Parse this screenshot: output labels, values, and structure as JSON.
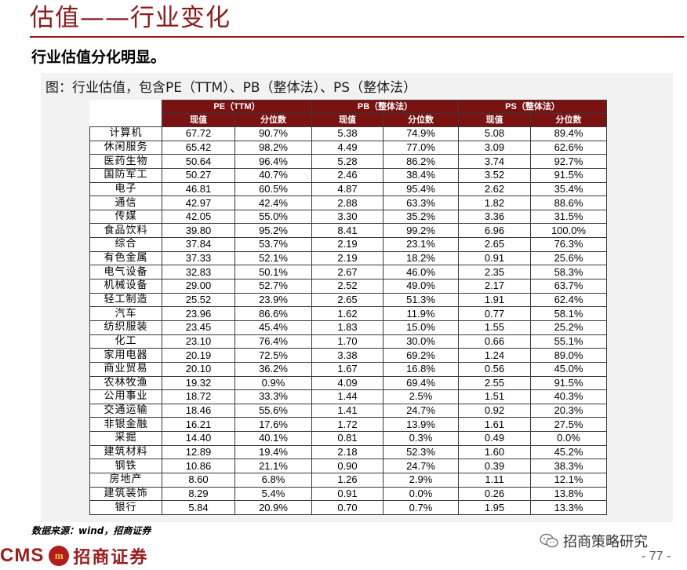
{
  "header": {
    "title": "估值——行业变化",
    "subtitle": "行业估值分化明显。"
  },
  "figure": {
    "caption": "图：行业估值，包含PE（TTM）、PB（整体法）、PS（整体法）"
  },
  "table": {
    "groups": [
      "PE（TTM）",
      "PB（整体法）",
      "PS（整体法）"
    ],
    "subheaders": [
      "现值",
      "分位数",
      "现值",
      "分位数",
      "现值",
      "分位数"
    ],
    "rows": [
      [
        "计算机",
        "67.72",
        "90.7%",
        "5.38",
        "74.9%",
        "5.08",
        "89.4%"
      ],
      [
        "休闲服务",
        "65.42",
        "98.2%",
        "4.49",
        "77.0%",
        "3.09",
        "62.6%"
      ],
      [
        "医药生物",
        "50.64",
        "96.4%",
        "5.28",
        "86.2%",
        "3.74",
        "92.7%"
      ],
      [
        "国防军工",
        "50.27",
        "40.7%",
        "2.46",
        "38.4%",
        "3.52",
        "91.5%"
      ],
      [
        "电子",
        "46.81",
        "60.5%",
        "4.87",
        "95.4%",
        "2.62",
        "35.4%"
      ],
      [
        "通信",
        "42.97",
        "42.4%",
        "2.88",
        "63.3%",
        "1.82",
        "88.6%"
      ],
      [
        "传媒",
        "42.05",
        "55.0%",
        "3.30",
        "35.2%",
        "3.36",
        "31.5%"
      ],
      [
        "食品饮料",
        "39.80",
        "95.2%",
        "8.41",
        "99.2%",
        "6.96",
        "100.0%"
      ],
      [
        "综合",
        "37.84",
        "53.7%",
        "2.19",
        "23.1%",
        "2.65",
        "76.3%"
      ],
      [
        "有色金属",
        "37.33",
        "52.1%",
        "2.19",
        "18.2%",
        "0.91",
        "25.6%"
      ],
      [
        "电气设备",
        "32.83",
        "50.1%",
        "2.67",
        "46.0%",
        "2.35",
        "58.3%"
      ],
      [
        "机械设备",
        "29.00",
        "52.7%",
        "2.52",
        "49.0%",
        "2.17",
        "63.7%"
      ],
      [
        "轻工制造",
        "25.52",
        "23.9%",
        "2.65",
        "51.3%",
        "1.91",
        "62.4%"
      ],
      [
        "汽车",
        "23.96",
        "86.6%",
        "1.62",
        "11.9%",
        "0.77",
        "58.1%"
      ],
      [
        "纺织服装",
        "23.45",
        "45.4%",
        "1.83",
        "15.0%",
        "1.55",
        "25.2%"
      ],
      [
        "化工",
        "23.10",
        "76.4%",
        "1.70",
        "30.0%",
        "0.66",
        "55.1%"
      ],
      [
        "家用电器",
        "20.19",
        "72.5%",
        "3.38",
        "69.2%",
        "1.24",
        "89.0%"
      ],
      [
        "商业贸易",
        "20.10",
        "36.2%",
        "1.67",
        "16.8%",
        "0.56",
        "45.0%"
      ],
      [
        "农林牧渔",
        "19.32",
        "0.9%",
        "4.09",
        "69.4%",
        "2.55",
        "91.5%"
      ],
      [
        "公用事业",
        "18.72",
        "33.3%",
        "1.44",
        "2.5%",
        "1.51",
        "40.3%"
      ],
      [
        "交通运输",
        "18.46",
        "55.6%",
        "1.41",
        "24.7%",
        "0.92",
        "20.3%"
      ],
      [
        "非银金融",
        "16.21",
        "17.6%",
        "1.72",
        "13.9%",
        "1.61",
        "27.5%"
      ],
      [
        "采掘",
        "14.40",
        "40.1%",
        "0.81",
        "0.3%",
        "0.49",
        "0.0%"
      ],
      [
        "建筑材料",
        "12.89",
        "19.4%",
        "2.18",
        "52.3%",
        "1.60",
        "45.2%"
      ],
      [
        "钢铁",
        "10.86",
        "21.1%",
        "0.90",
        "24.7%",
        "0.39",
        "38.3%"
      ],
      [
        "房地产",
        "8.60",
        "6.8%",
        "1.26",
        "2.9%",
        "1.11",
        "12.1%"
      ],
      [
        "建筑装饰",
        "8.29",
        "5.4%",
        "0.91",
        "0.0%",
        "0.26",
        "13.8%"
      ],
      [
        "银行",
        "5.84",
        "20.9%",
        "0.70",
        "0.7%",
        "1.95",
        "13.3%"
      ]
    ]
  },
  "footer": {
    "source": "数据来源：wind，招商证券",
    "logo_en": "CMS",
    "logo_mark": "m",
    "logo_cn": "招商证券",
    "wechat_label": "招商策略研究",
    "page_number": "- 77 -"
  },
  "colors": {
    "brand_red": "#8b1c1c",
    "header_fill": "#7a1212",
    "panel_gray": "#f2f2f2"
  },
  "icons": {
    "wechat": "wechat-icon"
  }
}
